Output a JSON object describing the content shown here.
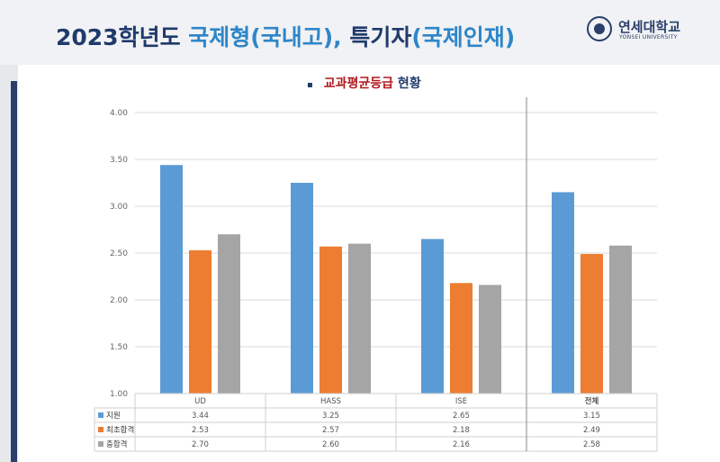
{
  "header": {
    "title_part1": "2023학년도 ",
    "title_part2": "국제형(국내고), ",
    "title_part3": "특기자",
    "title_part4": "(국제인재)",
    "logo_name": "연세대학교",
    "logo_sub": "YONSEI UNIVERSITY"
  },
  "subtitle": {
    "bullet": "▪",
    "red": "교과평균등급",
    "rest": " 현황"
  },
  "colors": {
    "accent": "#2e86c8",
    "title": "#1f3a6b",
    "subtitle_red": "#b0191e"
  },
  "chart_data": {
    "type": "bar",
    "categories": [
      "UD",
      "HASS",
      "ISE",
      "전체"
    ],
    "series": [
      {
        "name": "지원",
        "color": "#5b9bd5",
        "values": [
          3.44,
          3.25,
          2.65,
          3.15
        ]
      },
      {
        "name": "최초합격",
        "color": "#ed7d31",
        "values": [
          2.53,
          2.57,
          2.18,
          2.49
        ]
      },
      {
        "name": "충합격",
        "color": "#a5a5a5",
        "values": [
          2.7,
          2.6,
          2.16,
          2.58
        ]
      }
    ],
    "table_values": [
      [
        "3.44",
        "3.25",
        "2.65",
        "3.15"
      ],
      [
        "2.53",
        "2.57",
        "2.18",
        "2.49"
      ],
      [
        "2.70",
        "2.60",
        "2.16",
        "2.58"
      ]
    ],
    "yticks": [
      "1.00",
      "1.50",
      "2.00",
      "2.50",
      "3.00",
      "3.50",
      "4.00"
    ],
    "ylim": [
      1.0,
      4.0
    ],
    "grid": true,
    "data_table": true
  }
}
